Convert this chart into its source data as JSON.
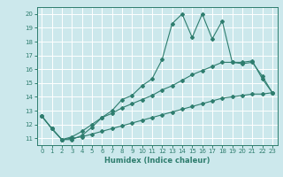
{
  "xlabel": "Humidex (Indice chaleur)",
  "bg_color": "#cce8ec",
  "grid_color": "#ffffff",
  "line_color": "#2e7d6e",
  "xlim": [
    -0.5,
    23.5
  ],
  "ylim": [
    10.5,
    20.5
  ],
  "xticks": [
    0,
    1,
    2,
    3,
    4,
    5,
    6,
    7,
    8,
    9,
    10,
    11,
    12,
    13,
    14,
    15,
    16,
    17,
    18,
    19,
    20,
    21,
    22,
    23
  ],
  "yticks": [
    11,
    12,
    13,
    14,
    15,
    16,
    17,
    18,
    19,
    20
  ],
  "series1_x": [
    0,
    1,
    2,
    3,
    4,
    5,
    6,
    7,
    8,
    9,
    10,
    11,
    12,
    13,
    14,
    15,
    16,
    17,
    18,
    19,
    20,
    21,
    22,
    23
  ],
  "series1_y": [
    12.6,
    11.7,
    10.9,
    10.9,
    11.2,
    11.8,
    12.5,
    13.0,
    13.8,
    14.1,
    14.8,
    15.3,
    16.7,
    19.3,
    20.0,
    18.3,
    20.0,
    18.2,
    19.5,
    16.5,
    16.5,
    16.6,
    15.3,
    14.3
  ],
  "series2_x": [
    0,
    1,
    2,
    3,
    4,
    5,
    6,
    7,
    8,
    9,
    10,
    11,
    12,
    13,
    14,
    15,
    16,
    17,
    18,
    19,
    20,
    21,
    22,
    23
  ],
  "series2_y": [
    12.6,
    11.7,
    10.9,
    11.1,
    11.5,
    12.0,
    12.5,
    12.8,
    13.2,
    13.5,
    13.8,
    14.1,
    14.5,
    14.8,
    15.2,
    15.6,
    15.9,
    16.2,
    16.5,
    16.5,
    16.4,
    16.5,
    15.5,
    14.3
  ],
  "series3_x": [
    0,
    1,
    2,
    3,
    4,
    5,
    6,
    7,
    8,
    9,
    10,
    11,
    12,
    13,
    14,
    15,
    16,
    17,
    18,
    19,
    20,
    21,
    22,
    23
  ],
  "series3_y": [
    12.6,
    11.7,
    10.9,
    11.0,
    11.1,
    11.3,
    11.5,
    11.7,
    11.9,
    12.1,
    12.3,
    12.5,
    12.7,
    12.9,
    13.1,
    13.3,
    13.5,
    13.7,
    13.9,
    14.0,
    14.1,
    14.2,
    14.2,
    14.3
  ]
}
